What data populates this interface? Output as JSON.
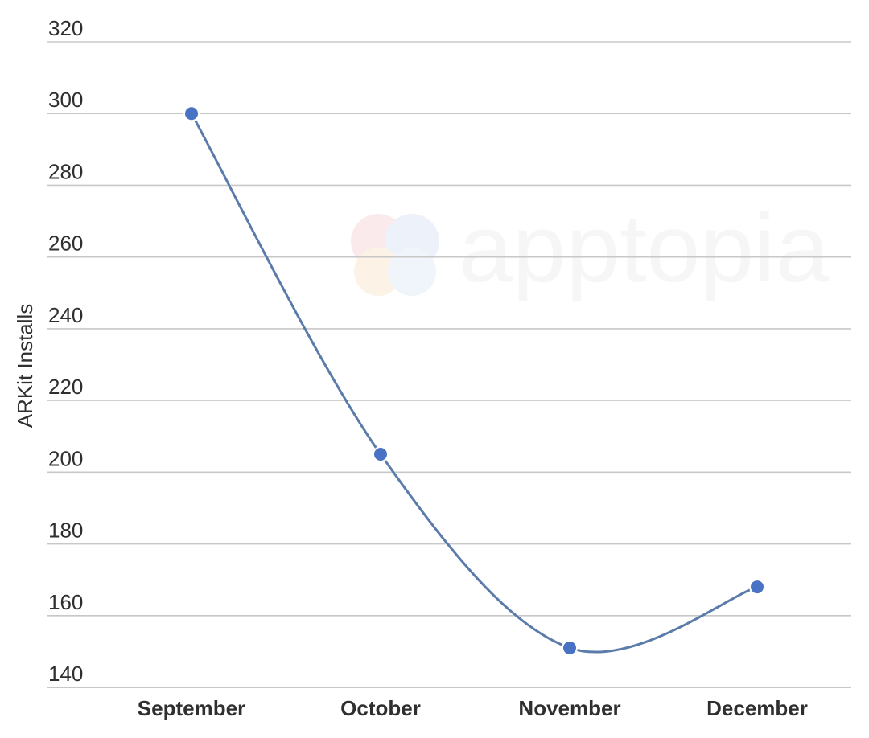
{
  "chart_data": {
    "type": "line",
    "categories": [
      "September",
      "October",
      "November",
      "December"
    ],
    "series": [
      {
        "values": [
          300,
          205,
          151,
          168
        ]
      }
    ],
    "title": "",
    "xlabel": "",
    "ylabel": "ARKit Installs",
    "ylim": [
      140,
      320
    ],
    "yticks": [
      140,
      160,
      180,
      200,
      220,
      240,
      260,
      280,
      300,
      320
    ],
    "grid": true,
    "legend": "none",
    "colors": {
      "line": "#5b7baa",
      "marker": "#4a72c4",
      "grid": "#c8c8c8",
      "text": "#2f2f2f"
    }
  },
  "watermark": {
    "text": "apptopia"
  }
}
